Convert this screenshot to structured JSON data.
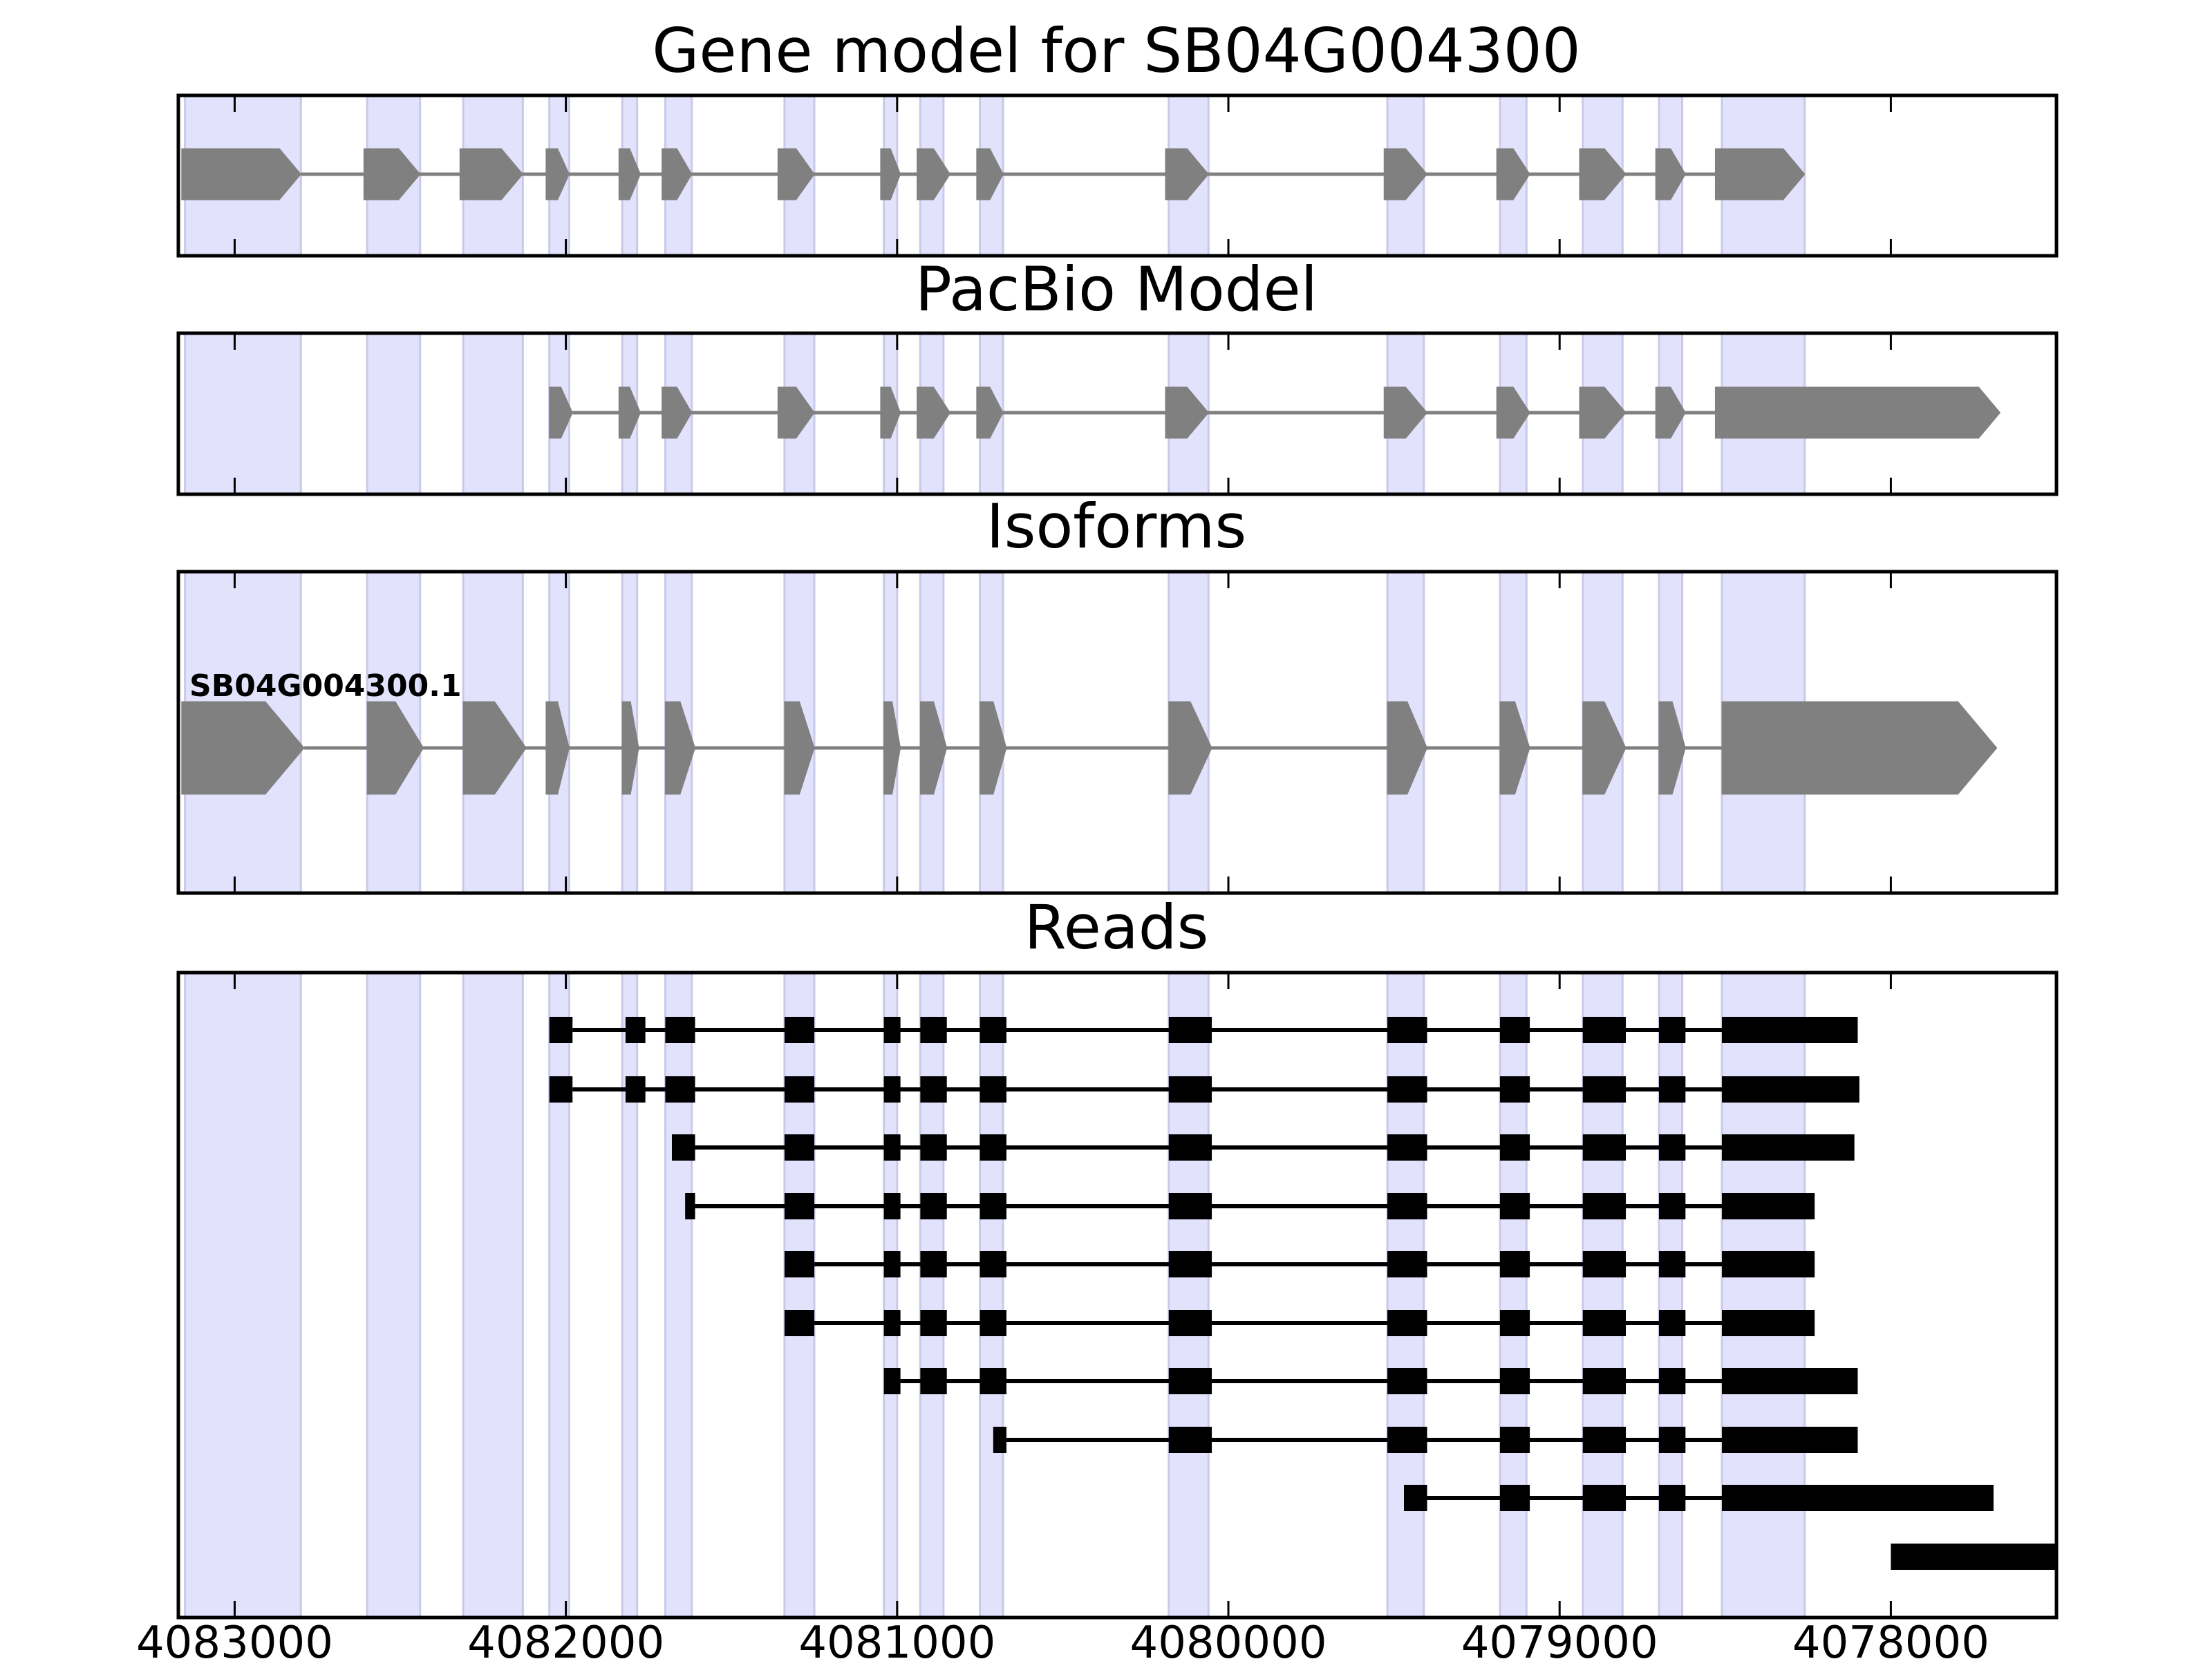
{
  "chart_data": {
    "type": "gene_track",
    "orientation": "minus_strand_reversed_axis",
    "x_range": [
      4083170,
      4077500
    ],
    "x_ticks": [
      {
        "value": 4083000,
        "label": "4083000"
      },
      {
        "value": 4082000,
        "label": "4082000"
      },
      {
        "value": 4081000,
        "label": "4081000"
      },
      {
        "value": 4080000,
        "label": "4080000"
      },
      {
        "value": 4079000,
        "label": "4079000"
      },
      {
        "value": 4078000,
        "label": "4078000"
      }
    ],
    "highlight_color": "#e2e2fc",
    "exon_color": "#808080",
    "read_color": "#000000",
    "highlight_regions": [
      [
        4083150,
        4082800
      ],
      [
        4082600,
        4082440
      ],
      [
        4082310,
        4082130
      ],
      [
        4082050,
        4081990
      ],
      [
        4081830,
        4081785
      ],
      [
        4081700,
        4081620
      ],
      [
        4081340,
        4081250
      ],
      [
        4081040,
        4081000
      ],
      [
        4080930,
        4080860
      ],
      [
        4080750,
        4080680
      ],
      [
        4080180,
        4080060
      ],
      [
        4079520,
        4079410
      ],
      [
        4079180,
        4079100
      ],
      [
        4078930,
        4078810
      ],
      [
        4078700,
        4078630
      ],
      [
        4078510,
        4078260
      ]
    ],
    "panels": [
      {
        "title": "Gene model for SB04G004300",
        "tracks": [
          {
            "label": "",
            "exons": [
              [
                4083160,
                4082800
              ],
              [
                4082610,
                4082440
              ],
              [
                4082320,
                4082130
              ],
              [
                4082060,
                4081990
              ],
              [
                4081840,
                4081775
              ],
              [
                4081710,
                4081620
              ],
              [
                4081360,
                4081250
              ],
              [
                4081050,
                4080990
              ],
              [
                4080940,
                4080840
              ],
              [
                4080760,
                4080680
              ],
              [
                4080190,
                4080060
              ],
              [
                4079530,
                4079400
              ],
              [
                4079190,
                4079090
              ],
              [
                4078940,
                4078800
              ],
              [
                4078710,
                4078620
              ],
              [
                4078530,
                4078260
              ]
            ]
          }
        ]
      },
      {
        "title": "PacBio Model",
        "tracks": [
          {
            "label": "",
            "exons": [
              [
                4082050,
                4081980
              ],
              [
                4081840,
                4081775
              ],
              [
                4081710,
                4081620
              ],
              [
                4081360,
                4081250
              ],
              [
                4081050,
                4080990
              ],
              [
                4080940,
                4080840
              ],
              [
                4080760,
                4080680
              ],
              [
                4080190,
                4080060
              ],
              [
                4079530,
                4079400
              ],
              [
                4079190,
                4079090
              ],
              [
                4078940,
                4078800
              ],
              [
                4078710,
                4078620
              ],
              [
                4078530,
                4077670
              ]
            ]
          }
        ]
      },
      {
        "title": "Isoforms",
        "tracks": [
          {
            "label": "SB04G004300.1",
            "exons": [
              [
                4083160,
                4082790
              ],
              [
                4082600,
                4082430
              ],
              [
                4082310,
                4082120
              ],
              [
                4082060,
                4081990
              ],
              [
                4081830,
                4081780
              ],
              [
                4081700,
                4081610
              ],
              [
                4081340,
                4081250
              ],
              [
                4081040,
                4080990
              ],
              [
                4080930,
                4080850
              ],
              [
                4080750,
                4080670
              ],
              [
                4080180,
                4080050
              ],
              [
                4079520,
                4079400
              ],
              [
                4079180,
                4079090
              ],
              [
                4078930,
                4078800
              ],
              [
                4078700,
                4078620
              ],
              [
                4078510,
                4077680
              ]
            ]
          }
        ]
      },
      {
        "title": "Reads",
        "tracks": [
          {
            "exons": [
              [
                4082050,
                4081980
              ],
              [
                4081820,
                4081760
              ],
              [
                4081700,
                4081610
              ],
              [
                4081340,
                4081250
              ],
              [
                4081040,
                4080990
              ],
              [
                4080930,
                4080850
              ],
              [
                4080750,
                4080670
              ],
              [
                4080180,
                4080050
              ],
              [
                4079520,
                4079400
              ],
              [
                4079180,
                4079090
              ],
              [
                4078930,
                4078800
              ],
              [
                4078700,
                4078620
              ],
              [
                4078510,
                4078100
              ]
            ]
          },
          {
            "exons": [
              [
                4082050,
                4081980
              ],
              [
                4081820,
                4081760
              ],
              [
                4081700,
                4081610
              ],
              [
                4081340,
                4081250
              ],
              [
                4081040,
                4080990
              ],
              [
                4080930,
                4080850
              ],
              [
                4080750,
                4080670
              ],
              [
                4080180,
                4080050
              ],
              [
                4079520,
                4079400
              ],
              [
                4079180,
                4079090
              ],
              [
                4078930,
                4078800
              ],
              [
                4078700,
                4078620
              ],
              [
                4078510,
                4078095
              ]
            ]
          },
          {
            "exons": [
              [
                4081680,
                4081610
              ],
              [
                4081340,
                4081250
              ],
              [
                4081040,
                4080990
              ],
              [
                4080930,
                4080850
              ],
              [
                4080750,
                4080670
              ],
              [
                4080180,
                4080050
              ],
              [
                4079520,
                4079400
              ],
              [
                4079180,
                4079090
              ],
              [
                4078930,
                4078800
              ],
              [
                4078700,
                4078620
              ],
              [
                4078510,
                4078110
              ]
            ]
          },
          {
            "exons": [
              [
                4081640,
                4081610
              ],
              [
                4081340,
                4081250
              ],
              [
                4081040,
                4080990
              ],
              [
                4080930,
                4080850
              ],
              [
                4080750,
                4080670
              ],
              [
                4080180,
                4080050
              ],
              [
                4079520,
                4079400
              ],
              [
                4079180,
                4079090
              ],
              [
                4078930,
                4078800
              ],
              [
                4078700,
                4078620
              ],
              [
                4078510,
                4078230
              ]
            ]
          },
          {
            "exons": [
              [
                4081340,
                4081250
              ],
              [
                4081040,
                4080990
              ],
              [
                4080930,
                4080850
              ],
              [
                4080750,
                4080670
              ],
              [
                4080180,
                4080050
              ],
              [
                4079520,
                4079400
              ],
              [
                4079180,
                4079090
              ],
              [
                4078930,
                4078800
              ],
              [
                4078700,
                4078620
              ],
              [
                4078510,
                4078230
              ]
            ]
          },
          {
            "exons": [
              [
                4081340,
                4081250
              ],
              [
                4081040,
                4080990
              ],
              [
                4080930,
                4080850
              ],
              [
                4080750,
                4080670
              ],
              [
                4080180,
                4080050
              ],
              [
                4079520,
                4079400
              ],
              [
                4079180,
                4079090
              ],
              [
                4078930,
                4078800
              ],
              [
                4078700,
                4078620
              ],
              [
                4078510,
                4078230
              ]
            ]
          },
          {
            "exons": [
              [
                4081040,
                4080990
              ],
              [
                4080930,
                4080850
              ],
              [
                4080750,
                4080670
              ],
              [
                4080180,
                4080050
              ],
              [
                4079520,
                4079400
              ],
              [
                4079180,
                4079090
              ],
              [
                4078930,
                4078800
              ],
              [
                4078700,
                4078620
              ],
              [
                4078510,
                4078100
              ]
            ]
          },
          {
            "exons": [
              [
                4080710,
                4080670
              ],
              [
                4080180,
                4080050
              ],
              [
                4079520,
                4079400
              ],
              [
                4079180,
                4079090
              ],
              [
                4078930,
                4078800
              ],
              [
                4078700,
                4078620
              ],
              [
                4078510,
                4078100
              ]
            ]
          },
          {
            "exons": [
              [
                4079470,
                4079400
              ],
              [
                4079180,
                4079090
              ],
              [
                4078930,
                4078800
              ],
              [
                4078700,
                4078620
              ],
              [
                4078510,
                4077690
              ]
            ]
          },
          {
            "exons": [
              [
                4078000,
                4077500
              ]
            ]
          }
        ]
      }
    ]
  }
}
